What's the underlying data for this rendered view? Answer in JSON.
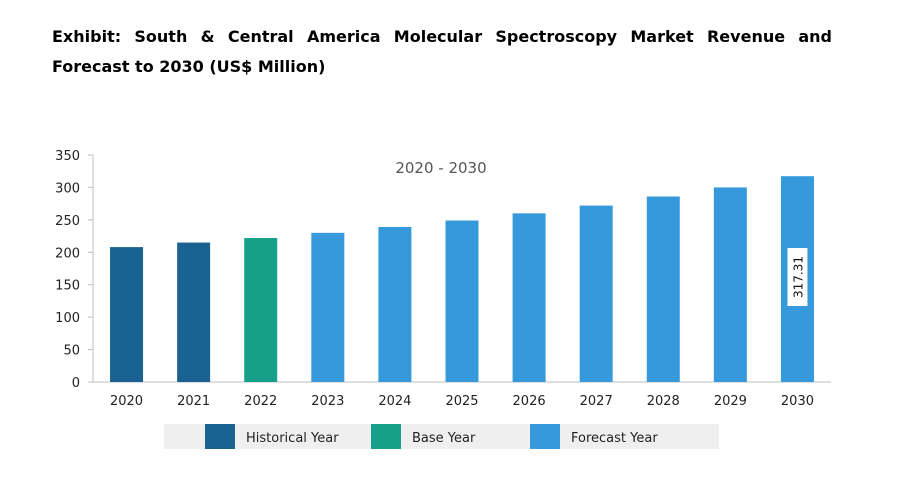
{
  "title": "Exhibit: South & Central America Molecular Spectroscopy Market Revenue and Forecast to 2030 (US$ Million)",
  "chart_data": {
    "type": "bar",
    "subtitle": "2020 - 2030",
    "categories": [
      "2020",
      "2021",
      "2022",
      "2023",
      "2024",
      "2025",
      "2026",
      "2027",
      "2028",
      "2029",
      "2030"
    ],
    "values": [
      208,
      215,
      222,
      230,
      239,
      249,
      260,
      272,
      286,
      300,
      317.31
    ],
    "bar_types": [
      "historical",
      "historical",
      "base",
      "forecast",
      "forecast",
      "forecast",
      "forecast",
      "forecast",
      "forecast",
      "forecast",
      "forecast"
    ],
    "ylim": [
      0,
      350
    ],
    "yticks": [
      0,
      50,
      100,
      150,
      200,
      250,
      300,
      350
    ],
    "grid": false,
    "data_labels": [
      {
        "category": "2030",
        "text": "317.31"
      }
    ],
    "legend": {
      "position": "bottom",
      "entries": [
        {
          "key": "historical",
          "label": "Historical Year",
          "color": "#1a6291"
        },
        {
          "key": "base",
          "label": "Base Year",
          "color": "#16a08a"
        },
        {
          "key": "forecast",
          "label": "Forecast Year",
          "color": "#3599dc"
        }
      ]
    },
    "colors": {
      "historical": "#1a6291",
      "base": "#16a08a",
      "forecast": "#3599dc",
      "axis": "#bfbfbf",
      "legend_bg": "#efefef"
    }
  }
}
